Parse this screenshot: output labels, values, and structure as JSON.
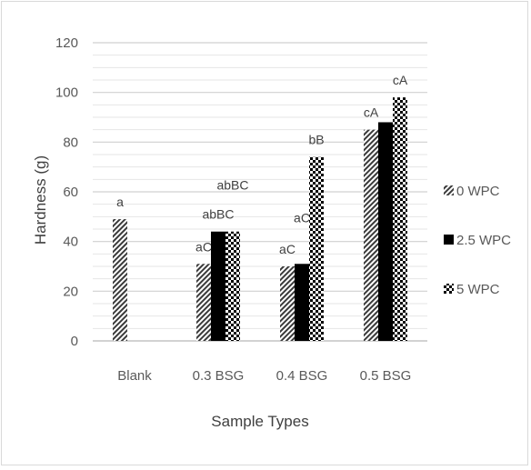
{
  "chart_data": {
    "type": "bar",
    "title": "",
    "xlabel": "Sample Types",
    "ylabel": "Hardness (g)",
    "ylim": [
      0,
      120
    ],
    "yticks": [
      0,
      20,
      40,
      60,
      80,
      100,
      120
    ],
    "grid": true,
    "legend_position": "right",
    "categories": [
      "Blank",
      "0.3 BSG",
      "0.4 BSG",
      "0.5 BSG"
    ],
    "series": [
      {
        "name": "0 WPC",
        "pattern": "diagonal-hatch",
        "values": [
          49,
          31,
          30,
          85
        ],
        "labels": [
          "a",
          "aC",
          "aC",
          "cA"
        ]
      },
      {
        "name": "2.5 WPC",
        "pattern": "solid",
        "color": "#000000",
        "values": [
          null,
          44,
          31,
          88
        ],
        "labels": [
          "",
          "abBC",
          "aC",
          ""
        ]
      },
      {
        "name": "5 WPC",
        "pattern": "checkerboard",
        "values": [
          null,
          44,
          74,
          98
        ],
        "labels": [
          "",
          "abBC",
          "bB",
          "cA"
        ]
      }
    ]
  }
}
